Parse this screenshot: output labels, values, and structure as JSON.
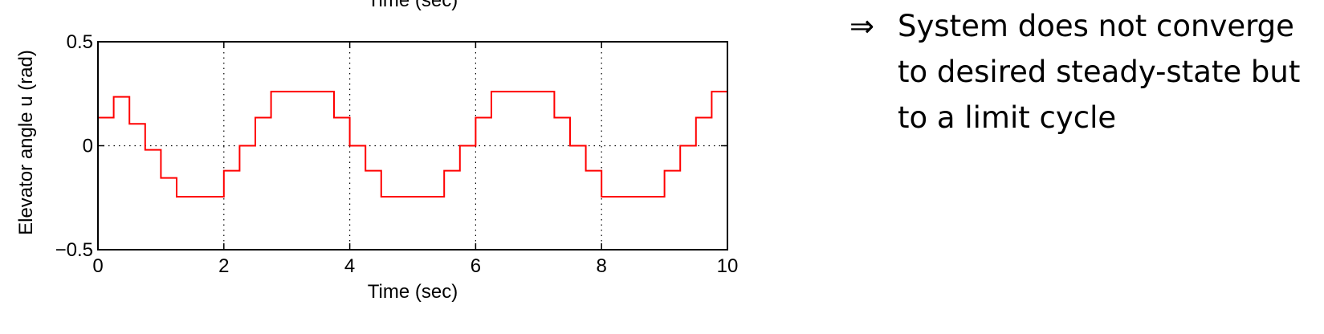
{
  "chart_data": {
    "type": "line",
    "step": true,
    "title": "",
    "top_cut_label": "Time (sec)",
    "xlabel": "Time (sec)",
    "ylabel": "Elevator angle u (rad)",
    "xlim": [
      0,
      10
    ],
    "ylim": [
      -0.5,
      0.5
    ],
    "xticks": [
      0,
      2,
      4,
      6,
      8,
      10
    ],
    "xtick_labels": [
      "0",
      "2",
      "4",
      "6",
      "8",
      "10"
    ],
    "yticks": [
      -0.5,
      0,
      0.5
    ],
    "ytick_labels": [
      "−0.5",
      "0",
      "0.5"
    ],
    "grid": "dotted",
    "series": [
      {
        "color": "#ff0000",
        "x": [
          0,
          0.25,
          0.5,
          0.75,
          1.0,
          1.25,
          1.5,
          1.75,
          2.0,
          2.25,
          2.5,
          2.75,
          3.0,
          3.25,
          3.5,
          3.75,
          4.0,
          4.25,
          4.5,
          4.75,
          5.0,
          5.25,
          5.5,
          5.75,
          6.0,
          6.25,
          6.5,
          6.75,
          7.0,
          7.25,
          7.5,
          7.75,
          8.0,
          8.25,
          8.5,
          8.75,
          9.0,
          9.25,
          9.5,
          9.75,
          10.0
        ],
        "y": [
          0.135,
          0.235,
          0.105,
          -0.02,
          -0.155,
          -0.245,
          -0.245,
          -0.245,
          -0.12,
          0.0,
          0.135,
          0.26,
          0.26,
          0.26,
          0.26,
          0.135,
          0.0,
          -0.12,
          -0.245,
          -0.245,
          -0.245,
          -0.245,
          -0.12,
          0.0,
          0.135,
          0.26,
          0.26,
          0.26,
          0.26,
          0.135,
          0.0,
          -0.12,
          -0.245,
          -0.245,
          -0.245,
          -0.245,
          -0.12,
          0.0,
          0.135,
          0.26,
          0.26
        ]
      }
    ]
  },
  "note": {
    "arrow": "⇒",
    "text": "System does not converge to desired steady-state but to a limit cycle"
  }
}
